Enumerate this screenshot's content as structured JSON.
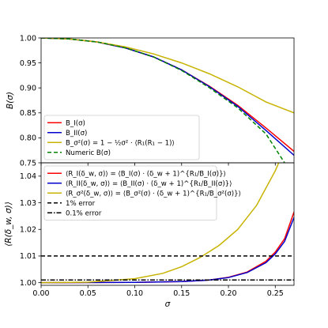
{
  "chart_data": [
    {
      "type": "line",
      "ylabel": "B(σ)",
      "xlim": [
        0.0,
        0.27
      ],
      "ylim": [
        0.75,
        1.0
      ],
      "yticks": [
        "0.75",
        "0.80",
        "0.85",
        "0.90",
        "0.95",
        "1.00"
      ],
      "legend_position": "lower-left",
      "series": [
        {
          "name": "B_I(σ)",
          "legend": "B_I(σ)",
          "color": "#ff0000",
          "style": "solid",
          "x": [
            0.0,
            0.03,
            0.06,
            0.09,
            0.12,
            0.15,
            0.18,
            0.21,
            0.24,
            0.27
          ],
          "y": [
            1.0,
            0.998,
            0.992,
            0.98,
            0.962,
            0.936,
            0.903,
            0.865,
            0.82,
            0.773
          ]
        },
        {
          "name": "B_II(σ)",
          "legend": "B_II(σ)",
          "color": "#0000cc",
          "style": "solid",
          "x": [
            0.0,
            0.03,
            0.06,
            0.09,
            0.12,
            0.15,
            0.18,
            0.21,
            0.24,
            0.27
          ],
          "y": [
            1.0,
            0.998,
            0.992,
            0.98,
            0.962,
            0.936,
            0.902,
            0.863,
            0.815,
            0.765
          ]
        },
        {
          "name": "B_σ²(σ)",
          "legend": "B_σ²(σ) = 1 − ½σ² · ⟨R₁(R₁ − 1)⟩",
          "color": "#c7b300",
          "style": "solid",
          "x": [
            0.0,
            0.03,
            0.06,
            0.09,
            0.12,
            0.15,
            0.18,
            0.21,
            0.24,
            0.27
          ],
          "y": [
            1.0,
            0.998,
            0.992,
            0.982,
            0.968,
            0.95,
            0.928,
            0.902,
            0.872,
            0.85
          ]
        },
        {
          "name": "Numeric B(σ)",
          "legend": "Numeric B(σ)",
          "color": "#008000",
          "style": "dashed",
          "x": [
            0.0,
            0.03,
            0.06,
            0.09,
            0.12,
            0.15,
            0.18,
            0.21,
            0.24,
            0.26
          ],
          "y": [
            1.0,
            0.998,
            0.992,
            0.98,
            0.962,
            0.935,
            0.9,
            0.86,
            0.808,
            0.75
          ]
        }
      ]
    },
    {
      "type": "line",
      "xlabel": "σ",
      "ylabel": "⟨R(δ_w, σ)⟩",
      "xlim": [
        0.0,
        0.27
      ],
      "ylim": [
        0.999,
        1.045
      ],
      "xticks": [
        "0.00",
        "0.05",
        "0.10",
        "0.15",
        "0.20",
        "0.25"
      ],
      "yticks": [
        "1.00",
        "1.01",
        "1.02",
        "1.03",
        "1.04"
      ],
      "legend_position": "top-left",
      "series": [
        {
          "name": "⟨R_I(δ_w, σ)⟩",
          "legend": "⟨R_I(δ_w, σ)⟩ = ⟨B_I(σ) · (δ_w + 1)^{R₁/B_I(σ)}⟩",
          "color": "#ff0000",
          "style": "solid",
          "x": [
            0.0,
            0.1,
            0.15,
            0.18,
            0.2,
            0.22,
            0.24,
            0.25,
            0.26,
            0.27
          ],
          "y": [
            1.0,
            1.0001,
            1.0004,
            1.001,
            1.002,
            1.004,
            1.008,
            1.0115,
            1.0165,
            1.0265
          ]
        },
        {
          "name": "⟨R_II(δ_w, σ)⟩",
          "legend": "⟨R_II(δ_w, σ)⟩ = ⟨B_II(σ) · (δ_w + 1)^{R₁/B_II(σ)}⟩",
          "color": "#0000cc",
          "style": "solid",
          "x": [
            0.0,
            0.1,
            0.15,
            0.18,
            0.2,
            0.22,
            0.24,
            0.25,
            0.26,
            0.27
          ],
          "y": [
            1.0,
            1.0001,
            1.0004,
            1.001,
            1.0019,
            1.0038,
            1.0075,
            1.0108,
            1.0155,
            1.0245
          ]
        },
        {
          "name": "⟨R_σ²(δ_w, σ)⟩",
          "legend": "⟨R_σ²(δ_w, σ)⟩ = ⟨B_σ²(σ) · (δ_w + 1)^{R₁/B_σ²(σ)}⟩",
          "color": "#c7b300",
          "style": "solid",
          "x": [
            0.0,
            0.05,
            0.1,
            0.13,
            0.15,
            0.17,
            0.19,
            0.21,
            0.23,
            0.25,
            0.26
          ],
          "y": [
            1.0,
            1.0002,
            1.0015,
            1.0035,
            1.006,
            1.0095,
            1.014,
            1.02,
            1.029,
            1.042,
            1.05
          ]
        },
        {
          "name": "1% error",
          "legend": "1% error",
          "color": "#000000",
          "style": "dashed",
          "x": [
            0.0,
            0.27
          ],
          "y": [
            1.01,
            1.01
          ]
        },
        {
          "name": "0.1% error",
          "legend": "0.1% error",
          "color": "#000000",
          "style": "dashdot",
          "x": [
            0.0,
            0.27
          ],
          "y": [
            1.001,
            1.001
          ]
        }
      ]
    }
  ]
}
